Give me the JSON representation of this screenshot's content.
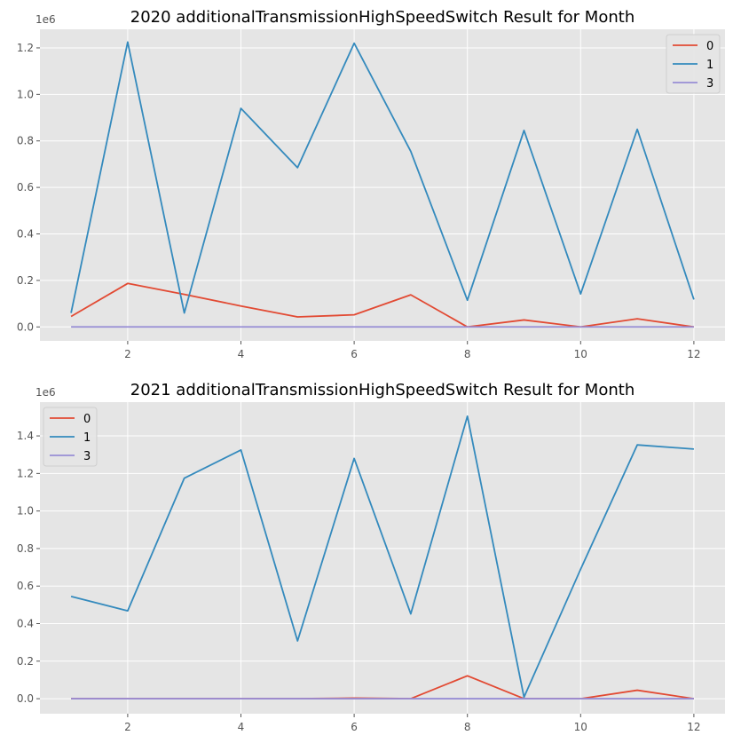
{
  "chart_data": [
    {
      "type": "line",
      "title": "2020 additionalTransmissionHighSpeedSwitch Result for Month",
      "xlabel": "",
      "ylabel": "",
      "y_offset_label": "1e6",
      "x": [
        1,
        2,
        3,
        4,
        5,
        6,
        7,
        8,
        9,
        10,
        11,
        12
      ],
      "xlim": [
        0.45,
        12.55
      ],
      "xticks": [
        2,
        4,
        6,
        8,
        10,
        12
      ],
      "xtick_labels": [
        "2",
        "4",
        "6",
        "8",
        "10",
        "12"
      ],
      "ylim": [
        -0.06,
        1.28
      ],
      "yticks": [
        0.0,
        0.2,
        0.4,
        0.6,
        0.8,
        1.0,
        1.2
      ],
      "ytick_labels": [
        "0.0",
        "0.2",
        "0.4",
        "0.6",
        "0.8",
        "1.0",
        "1.2"
      ],
      "grid": true,
      "legend_position": "upper right",
      "series": [
        {
          "name": "0",
          "color": "#E24A33",
          "values": [
            0.045,
            0.187,
            0.14,
            0.09,
            0.043,
            0.052,
            0.138,
            0.0,
            0.03,
            0.0,
            0.035,
            0.0
          ]
        },
        {
          "name": "1",
          "color": "#348ABD",
          "values": [
            0.06,
            1.225,
            0.06,
            0.94,
            0.685,
            1.22,
            0.755,
            0.115,
            0.845,
            0.142,
            0.85,
            0.118
          ]
        },
        {
          "name": "3",
          "color": "#988ED5",
          "values": [
            0,
            0,
            0,
            0,
            0,
            0,
            0,
            0,
            0,
            0,
            0,
            0
          ]
        }
      ]
    },
    {
      "type": "line",
      "title": "2021 additionalTransmissionHighSpeedSwitch Result for Month",
      "xlabel": "",
      "ylabel": "",
      "y_offset_label": "1e6",
      "x": [
        1,
        2,
        3,
        4,
        5,
        6,
        7,
        8,
        9,
        10,
        11,
        12
      ],
      "xlim": [
        0.45,
        12.55
      ],
      "xticks": [
        2,
        4,
        6,
        8,
        10,
        12
      ],
      "xtick_labels": [
        "2",
        "4",
        "6",
        "8",
        "10",
        "12"
      ],
      "ylim": [
        -0.08,
        1.58
      ],
      "yticks": [
        0.0,
        0.2,
        0.4,
        0.6,
        0.8,
        1.0,
        1.2,
        1.4
      ],
      "ytick_labels": [
        "0.0",
        "0.2",
        "0.4",
        "0.6",
        "0.8",
        "1.0",
        "1.2",
        "1.4"
      ],
      "grid": true,
      "legend_position": "upper left",
      "series": [
        {
          "name": "0",
          "color": "#E24A33",
          "values": [
            0.0,
            0.0,
            0.0,
            0.0,
            0.0,
            0.003,
            0.0,
            0.122,
            0.0,
            0.0,
            0.045,
            0.0
          ]
        },
        {
          "name": "1",
          "color": "#348ABD",
          "values": [
            0.545,
            0.468,
            1.175,
            1.325,
            0.308,
            1.28,
            0.452,
            1.505,
            0.008,
            0.69,
            1.352,
            1.33
          ]
        },
        {
          "name": "3",
          "color": "#988ED5",
          "values": [
            0,
            0,
            0,
            0,
            0,
            0,
            0,
            0,
            0,
            0,
            0,
            0
          ]
        }
      ]
    }
  ]
}
